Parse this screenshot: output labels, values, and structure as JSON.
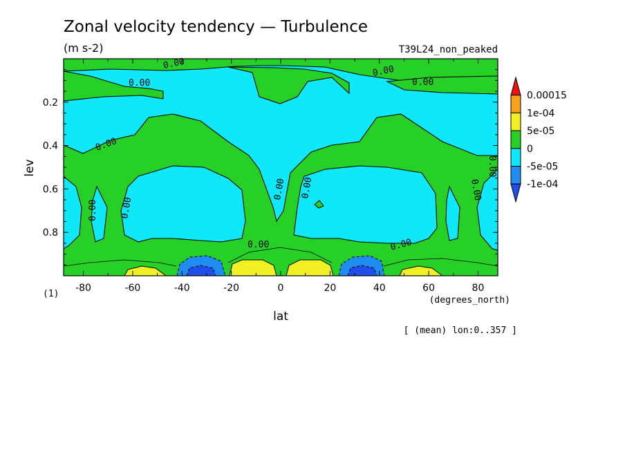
{
  "chart_data": {
    "type": "contour",
    "title": "Zonal velocity tendency — Turbulence",
    "units": "(m s-2)",
    "run_label": "T39L24_non_peaked",
    "xlabel": "lat",
    "xunits": "(degrees_north)",
    "ylabel": "lev",
    "yunits": "(1)",
    "x_ticks": [
      "-80",
      "-60",
      "-40",
      "-20",
      "0",
      "20",
      "40",
      "60",
      "80"
    ],
    "x_tick_values": [
      -80,
      -60,
      -40,
      -20,
      0,
      20,
      40,
      60,
      80
    ],
    "y_ticks": [
      "0.2",
      "0.4",
      "0.6",
      "0.8"
    ],
    "y_tick_values": [
      0.2,
      0.4,
      0.6,
      0.8
    ],
    "xlim": [
      -88,
      88
    ],
    "ylim": [
      1.0,
      0.0
    ],
    "footnote": "[ (mean) lon:0..357 ]",
    "contour_label": "0.00",
    "colorbar": {
      "labels": [
        "0.00015",
        "1e-04",
        "5e-05",
        "0",
        "-5e-05",
        "-1e-04"
      ],
      "colors": [
        "#ee1111",
        "#f7a21a",
        "#f0f024",
        "#27d027",
        "#0ee8f8",
        "#1e8cf0",
        "#1f4fe8"
      ]
    }
  }
}
